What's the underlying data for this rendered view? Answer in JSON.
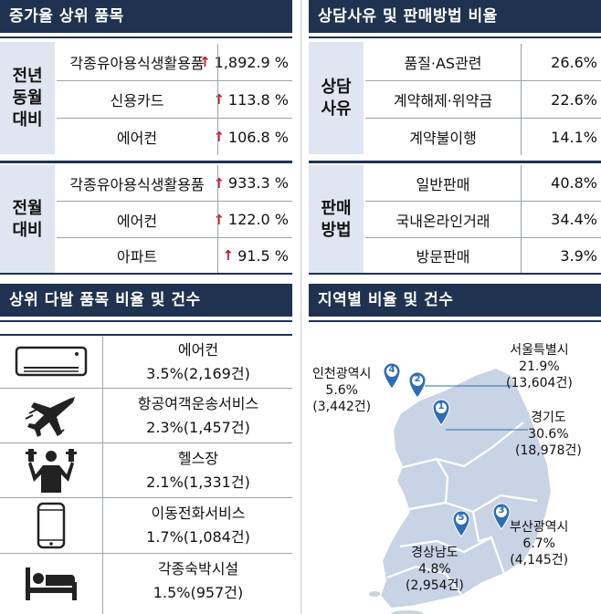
{
  "increase": {
    "title": "증가율 상위 품목",
    "groups": [
      {
        "label": [
          "전년",
          "동월",
          "대비"
        ],
        "rows": [
          {
            "name": "각종유아용식생활용품",
            "value": "1,892.9 %"
          },
          {
            "name": "신용카드",
            "value": "113.8 %"
          },
          {
            "name": "에어컨",
            "value": "106.8 %"
          }
        ]
      },
      {
        "label": [
          "전월",
          "대비"
        ],
        "rows": [
          {
            "name": "각종유아용식생활용품",
            "value": "933.3 %"
          },
          {
            "name": "에어컨",
            "value": "122.0 %"
          },
          {
            "name": "아파트",
            "value": "91.5 %"
          }
        ]
      }
    ],
    "arrow": "↑",
    "arrow_color": "#c8102e"
  },
  "reasons": {
    "title": "상담사유 및 판매방법 비율",
    "groups": [
      {
        "label": [
          "상담",
          "사유"
        ],
        "rows": [
          {
            "name": "품질·AS관련",
            "value": "26.6%"
          },
          {
            "name": "계약해제·위약금",
            "value": "22.6%"
          },
          {
            "name": "계약불이행",
            "value": "14.1%"
          }
        ]
      },
      {
        "label": [
          "판매",
          "방법"
        ],
        "rows": [
          {
            "name": "일반판매",
            "value": "40.8%"
          },
          {
            "name": "국내온라인거래",
            "value": "34.4%"
          },
          {
            "name": "방문판매",
            "value": "3.9%"
          }
        ]
      }
    ]
  },
  "top_items": {
    "title": "상위 다발 품목 비율 및 건수",
    "items": [
      {
        "icon": "air-conditioner-icon",
        "name": "에어컨",
        "stat": "3.5%(2,169건)"
      },
      {
        "icon": "airplane-icon",
        "name": "항공여객운송서비스",
        "stat": "2.3%(1,457건)"
      },
      {
        "icon": "gym-icon",
        "name": "헬스장",
        "stat": "2.1%(1,331건)"
      },
      {
        "icon": "mobile-phone-icon",
        "name": "이동전화서비스",
        "stat": "1.7%(1,084건)"
      },
      {
        "icon": "bed-icon",
        "name": "각종숙박시설",
        "stat": "1.5%(957건)"
      }
    ]
  },
  "regions": {
    "title": "지역별 비율 및 건수",
    "map_color": "#c9d3e6",
    "marker_color": "#2d6db3",
    "markers": [
      "1",
      "2",
      "3",
      "4",
      "5"
    ],
    "labels": [
      {
        "name": "서울특별시",
        "pct": "21.9%",
        "count": "(13,604건)"
      },
      {
        "name": "경기도",
        "pct": "30.6%",
        "count": "(18,978건)"
      },
      {
        "name": "부산광역시",
        "pct": "6.7%",
        "count": "(4,145건)"
      },
      {
        "name": "인천광역시",
        "pct": "5.6%",
        "count": "(3,442건)"
      },
      {
        "name": "경상남도",
        "pct": "4.8%",
        "count": "(2,954건)"
      }
    ]
  }
}
